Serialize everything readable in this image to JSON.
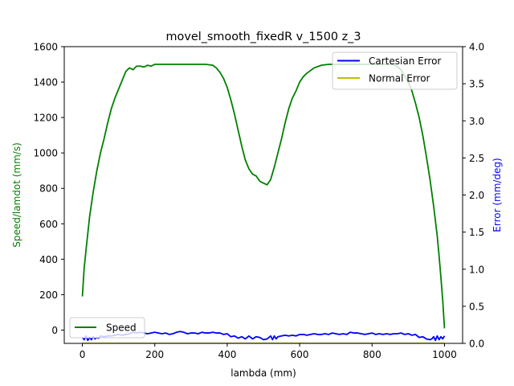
{
  "chart_data": {
    "type": "line",
    "title": "movel_smooth_fixedR v_1500 z_3",
    "xlabel": "lambda (mm)",
    "ylabel_left": "Speed/lamdot (mm/s)",
    "ylabel_right": "Error (mm/deg)",
    "xlim": [
      -50,
      1050
    ],
    "ylim_left": [
      -75,
      1600
    ],
    "ylim_right": [
      0,
      4.0
    ],
    "x_ticks": [
      0,
      200,
      400,
      600,
      800,
      1000
    ],
    "y_ticks_left": [
      0,
      200,
      400,
      600,
      800,
      1000,
      1200,
      1400,
      1600
    ],
    "y_ticks_right": [
      0.0,
      0.5,
      1.0,
      1.5,
      2.0,
      2.5,
      3.0,
      3.5,
      4.0
    ],
    "x_tick_labels": [
      "0",
      "200",
      "400",
      "600",
      "800",
      "1000"
    ],
    "y_tick_labels_left": [
      "0",
      "200",
      "400",
      "600",
      "800",
      "1000",
      "1200",
      "1400",
      "1600"
    ],
    "y_tick_labels_right": [
      "0.0",
      "0.5",
      "1.0",
      "1.5",
      "2.0",
      "2.5",
      "3.0",
      "3.5",
      "4.0"
    ],
    "grid": false,
    "series": [
      {
        "name": "Speed",
        "axis": "left",
        "color": "#008000",
        "x": [
          0,
          5,
          10,
          20,
          30,
          40,
          50,
          60,
          70,
          80,
          90,
          100,
          110,
          120,
          130,
          140,
          150,
          160,
          170,
          180,
          190,
          200,
          220,
          240,
          260,
          280,
          300,
          320,
          340,
          360,
          370,
          380,
          390,
          400,
          410,
          420,
          430,
          440,
          450,
          460,
          470,
          480,
          490,
          500,
          510,
          520,
          530,
          540,
          550,
          560,
          570,
          580,
          590,
          600,
          610,
          620,
          640,
          660,
          680,
          700,
          720,
          740,
          760,
          780,
          800,
          820,
          840,
          860,
          880,
          900,
          910,
          920,
          930,
          940,
          950,
          960,
          970,
          980,
          985,
          990,
          995,
          1000
        ],
        "y": [
          190,
          350,
          450,
          640,
          780,
          900,
          1000,
          1080,
          1170,
          1250,
          1310,
          1360,
          1410,
          1460,
          1480,
          1470,
          1490,
          1490,
          1485,
          1495,
          1490,
          1500,
          1500,
          1500,
          1500,
          1500,
          1500,
          1500,
          1500,
          1495,
          1480,
          1455,
          1420,
          1370,
          1300,
          1220,
          1130,
          1040,
          960,
          910,
          880,
          870,
          840,
          830,
          820,
          850,
          920,
          1000,
          1080,
          1170,
          1250,
          1310,
          1350,
          1400,
          1430,
          1450,
          1480,
          1495,
          1500,
          1500,
          1500,
          1500,
          1500,
          1500,
          1500,
          1500,
          1500,
          1500,
          1470,
          1400,
          1350,
          1280,
          1200,
          1100,
          980,
          850,
          700,
          530,
          420,
          300,
          170,
          10
        ]
      },
      {
        "name": "Cartesian Error",
        "axis": "right",
        "color": "#0000ff",
        "x": [
          0,
          5,
          10,
          15,
          20,
          25,
          30,
          35,
          40,
          45,
          50,
          60,
          70,
          80,
          90,
          100,
          110,
          120,
          130,
          140,
          150,
          160,
          170,
          180,
          190,
          200,
          210,
          220,
          230,
          240,
          250,
          260,
          270,
          280,
          290,
          300,
          310,
          320,
          330,
          340,
          350,
          360,
          370,
          380,
          390,
          400,
          410,
          420,
          430,
          440,
          450,
          460,
          470,
          480,
          490,
          500,
          510,
          520,
          525,
          530,
          535,
          540,
          550,
          560,
          570,
          580,
          590,
          600,
          610,
          620,
          630,
          640,
          650,
          660,
          670,
          680,
          690,
          700,
          710,
          720,
          730,
          740,
          750,
          760,
          770,
          780,
          790,
          800,
          810,
          820,
          830,
          840,
          850,
          860,
          870,
          880,
          890,
          900,
          910,
          920,
          930,
          940,
          950,
          960,
          965,
          970,
          975,
          980,
          985,
          990,
          995,
          1000
        ],
        "y": [
          0.08,
          0.05,
          0.1,
          0.04,
          0.08,
          0.05,
          0.09,
          0.06,
          0.08,
          0.07,
          0.1,
          0.09,
          0.1,
          0.1,
          0.11,
          0.12,
          0.11,
          0.12,
          0.13,
          0.15,
          0.14,
          0.15,
          0.14,
          0.13,
          0.14,
          0.15,
          0.14,
          0.13,
          0.14,
          0.12,
          0.13,
          0.15,
          0.16,
          0.15,
          0.13,
          0.14,
          0.14,
          0.13,
          0.15,
          0.14,
          0.14,
          0.15,
          0.14,
          0.14,
          0.12,
          0.13,
          0.09,
          0.1,
          0.07,
          0.09,
          0.06,
          0.1,
          0.06,
          0.09,
          0.08,
          0.05,
          0.06,
          0.1,
          0.05,
          0.1,
          0.06,
          0.09,
          0.1,
          0.11,
          0.1,
          0.11,
          0.1,
          0.12,
          0.12,
          0.11,
          0.12,
          0.13,
          0.12,
          0.12,
          0.13,
          0.12,
          0.14,
          0.13,
          0.12,
          0.13,
          0.12,
          0.15,
          0.14,
          0.14,
          0.13,
          0.12,
          0.13,
          0.14,
          0.12,
          0.13,
          0.12,
          0.13,
          0.12,
          0.13,
          0.13,
          0.14,
          0.12,
          0.13,
          0.11,
          0.12,
          0.08,
          0.09,
          0.06,
          0.05,
          0.06,
          0.09,
          0.04,
          0.1,
          0.05,
          0.09,
          0.06,
          0.1
        ]
      },
      {
        "name": "Normal Error",
        "axis": "right",
        "color": "#bfbf00",
        "x": [
          0,
          1000
        ],
        "y": [
          0.001,
          0.001
        ]
      }
    ],
    "legends": [
      {
        "position": "lower-left",
        "entries": [
          "Speed"
        ]
      },
      {
        "position": "upper-right",
        "entries": [
          "Cartesian Error",
          "Normal Error"
        ]
      }
    ]
  }
}
